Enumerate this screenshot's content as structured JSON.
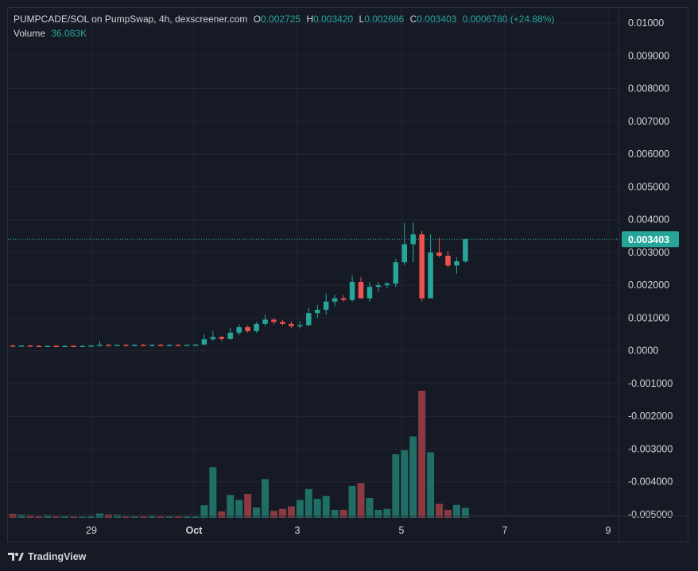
{
  "header": {
    "symbol": "PUMPCADE/SOL on PumpSwap, 4h, dexscreener.com",
    "o_label": "O",
    "o_value": "0.002725",
    "h_label": "H",
    "h_value": "0.003420",
    "l_label": "L",
    "l_value": "0.002686",
    "c_label": "C",
    "c_value": "0.003403",
    "change": "0.0006780 (+24.88%)",
    "volume_label": "Volume",
    "volume_value": "36.083K"
  },
  "price_tag": "0.003403",
  "footer": {
    "brand": "TradingView"
  },
  "colors": {
    "up": "#26a69a",
    "down": "#ef5350",
    "vol_up": "#1f6f66",
    "vol_down": "#8c3a41",
    "grid": "#232733",
    "background": "#161a25"
  },
  "chart_data": {
    "type": "candlestick",
    "y_ticks": [
      "0.01000",
      "0.009000",
      "0.008000",
      "0.007000",
      "0.006000",
      "0.005000",
      "0.004000",
      "0.003000",
      "0.002000",
      "0.001000",
      "0.0000",
      "-0.001000",
      "-0.002000",
      "-0.003000",
      "-0.004000",
      "-0.005000"
    ],
    "ylim": [
      -0.005,
      0.01
    ],
    "x_ticks": [
      "29",
      "Oct",
      "3",
      "5",
      "7",
      "9"
    ],
    "last_price": 0.003403,
    "candles": [
      {
        "o": 0.00016,
        "h": 0.00018,
        "l": 0.00014,
        "c": 0.00015,
        "v": 2
      },
      {
        "o": 0.00015,
        "h": 0.00017,
        "l": 0.00014,
        "c": 0.00016,
        "v": 1.5
      },
      {
        "o": 0.00016,
        "h": 0.00018,
        "l": 0.00014,
        "c": 0.00015,
        "v": 1.2
      },
      {
        "o": 0.00015,
        "h": 0.00017,
        "l": 0.00013,
        "c": 0.00014,
        "v": 1.0
      },
      {
        "o": 0.00014,
        "h": 0.00016,
        "l": 0.00013,
        "c": 0.00015,
        "v": 1.3
      },
      {
        "o": 0.00015,
        "h": 0.00017,
        "l": 0.00013,
        "c": 0.00014,
        "v": 0.8
      },
      {
        "o": 0.00014,
        "h": 0.00016,
        "l": 0.00012,
        "c": 0.00015,
        "v": 0.7
      },
      {
        "o": 0.00015,
        "h": 0.00017,
        "l": 0.00013,
        "c": 0.00014,
        "v": 0.9
      },
      {
        "o": 0.00014,
        "h": 0.00016,
        "l": 0.00012,
        "c": 0.00015,
        "v": 0.5
      },
      {
        "o": 0.00015,
        "h": 0.00017,
        "l": 0.00014,
        "c": 0.00016,
        "v": 0.6
      },
      {
        "o": 0.00016,
        "h": 0.0003,
        "l": 0.00014,
        "c": 0.00018,
        "v": 2.2
      },
      {
        "o": 0.00018,
        "h": 0.0002,
        "l": 0.00015,
        "c": 0.00017,
        "v": 1.6
      },
      {
        "o": 0.00017,
        "h": 0.00019,
        "l": 0.00015,
        "c": 0.00018,
        "v": 1.4
      },
      {
        "o": 0.00018,
        "h": 0.0002,
        "l": 0.00016,
        "c": 0.00017,
        "v": 0.9
      },
      {
        "o": 0.00017,
        "h": 0.00019,
        "l": 0.00015,
        "c": 0.00018,
        "v": 1.0
      },
      {
        "o": 0.00018,
        "h": 0.0002,
        "l": 0.00016,
        "c": 0.00017,
        "v": 0.8
      },
      {
        "o": 0.00017,
        "h": 0.00019,
        "l": 0.00015,
        "c": 0.00018,
        "v": 1.1
      },
      {
        "o": 0.00018,
        "h": 0.0002,
        "l": 0.00016,
        "c": 0.00017,
        "v": 1.0
      },
      {
        "o": 0.00017,
        "h": 0.00019,
        "l": 0.00015,
        "c": 0.00018,
        "v": 0.7
      },
      {
        "o": 0.00018,
        "h": 0.0002,
        "l": 0.00016,
        "c": 0.00017,
        "v": 0.9
      },
      {
        "o": 0.00017,
        "h": 0.00019,
        "l": 0.00015,
        "c": 0.00018,
        "v": 0.8
      },
      {
        "o": 0.00018,
        "h": 0.0002,
        "l": 0.00016,
        "c": 0.00019,
        "v": 1.0
      },
      {
        "o": 0.00019,
        "h": 0.0005,
        "l": 0.00017,
        "c": 0.00035,
        "v": 6.3
      },
      {
        "o": 0.00035,
        "h": 0.0006,
        "l": 0.0003,
        "c": 0.00042,
        "v": 25.5
      },
      {
        "o": 0.00042,
        "h": 0.00045,
        "l": 0.0003,
        "c": 0.00036,
        "v": 3.2
      },
      {
        "o": 0.00036,
        "h": 0.0007,
        "l": 0.00034,
        "c": 0.00055,
        "v": 11.5
      },
      {
        "o": 0.00055,
        "h": 0.0008,
        "l": 0.00048,
        "c": 0.00072,
        "v": 9.0
      },
      {
        "o": 0.00072,
        "h": 0.00078,
        "l": 0.00055,
        "c": 0.0006,
        "v": 12.0
      },
      {
        "o": 0.0006,
        "h": 0.00088,
        "l": 0.00055,
        "c": 0.00082,
        "v": 5.2
      },
      {
        "o": 0.00082,
        "h": 0.0011,
        "l": 0.00075,
        "c": 0.00095,
        "v": 19.5
      },
      {
        "o": 0.00095,
        "h": 0.001,
        "l": 0.0008,
        "c": 0.00088,
        "v": 3.5
      },
      {
        "o": 0.00088,
        "h": 0.00095,
        "l": 0.00078,
        "c": 0.00082,
        "v": 4.5
      },
      {
        "o": 0.00082,
        "h": 0.0009,
        "l": 0.0007,
        "c": 0.00075,
        "v": 5.8
      },
      {
        "o": 0.00075,
        "h": 0.0009,
        "l": 0.00068,
        "c": 0.00078,
        "v": 9.0
      },
      {
        "o": 0.00078,
        "h": 0.0013,
        "l": 0.00075,
        "c": 0.00115,
        "v": 14.5
      },
      {
        "o": 0.00115,
        "h": 0.0014,
        "l": 0.001,
        "c": 0.00125,
        "v": 9.5
      },
      {
        "o": 0.00125,
        "h": 0.00175,
        "l": 0.0011,
        "c": 0.0015,
        "v": 11.0
      },
      {
        "o": 0.0015,
        "h": 0.0017,
        "l": 0.00135,
        "c": 0.0016,
        "v": 4.0
      },
      {
        "o": 0.0016,
        "h": 0.0017,
        "l": 0.0015,
        "c": 0.00155,
        "v": 4.0
      },
      {
        "o": 0.00155,
        "h": 0.0023,
        "l": 0.0015,
        "c": 0.0021,
        "v": 16.0
      },
      {
        "o": 0.0021,
        "h": 0.00225,
        "l": 0.0016,
        "c": 0.0016,
        "v": 17.5
      },
      {
        "o": 0.0016,
        "h": 0.0021,
        "l": 0.0015,
        "c": 0.00195,
        "v": 10.0
      },
      {
        "o": 0.00195,
        "h": 0.0021,
        "l": 0.0018,
        "c": 0.002,
        "v": 4.0
      },
      {
        "o": 0.002,
        "h": 0.0021,
        "l": 0.0019,
        "c": 0.00205,
        "v": 4.5
      },
      {
        "o": 0.00205,
        "h": 0.0028,
        "l": 0.00195,
        "c": 0.0027,
        "v": 32.0
      },
      {
        "o": 0.0027,
        "h": 0.0039,
        "l": 0.0026,
        "c": 0.00325,
        "v": 34.0
      },
      {
        "o": 0.00325,
        "h": 0.0039,
        "l": 0.0027,
        "c": 0.00355,
        "v": 41.0
      },
      {
        "o": 0.00355,
        "h": 0.00365,
        "l": 0.0015,
        "c": 0.0016,
        "v": 64.0
      },
      {
        "o": 0.0016,
        "h": 0.00355,
        "l": 0.0016,
        "c": 0.003,
        "v": 33.0
      },
      {
        "o": 0.003,
        "h": 0.00345,
        "l": 0.00285,
        "c": 0.0029,
        "v": 7.0
      },
      {
        "o": 0.0029,
        "h": 0.00305,
        "l": 0.00255,
        "c": 0.0026,
        "v": 4.0
      },
      {
        "o": 0.0026,
        "h": 0.00285,
        "l": 0.00235,
        "c": 0.00273,
        "v": 6.5
      },
      {
        "o": 0.002725,
        "h": 0.00342,
        "l": 0.002686,
        "c": 0.003403,
        "v": 5.0
      }
    ]
  }
}
